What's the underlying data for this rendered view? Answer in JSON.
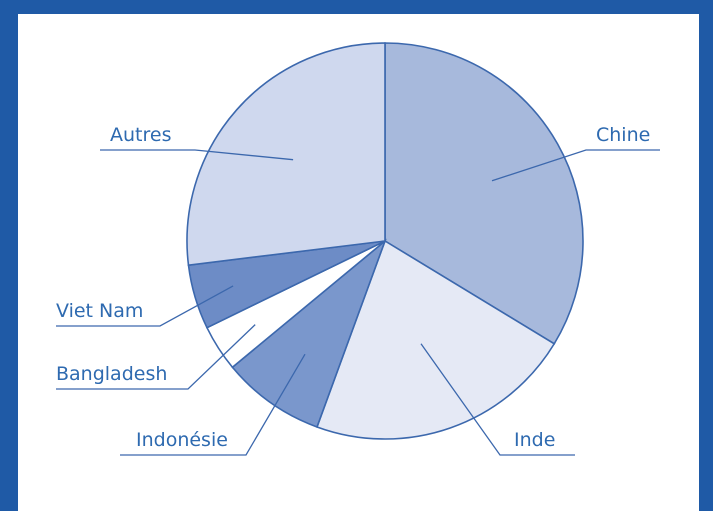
{
  "chart_data": {
    "type": "pie",
    "title": "",
    "slices": [
      {
        "label": "Chine",
        "value": 32.0,
        "color": "#a7b9dc"
      },
      {
        "label": "Inde",
        "value": 20.8,
        "color": "#e5e9f5"
      },
      {
        "label": "Indonésie",
        "value": 8.0,
        "color": "#7a97cc"
      },
      {
        "label": "Bangladesh",
        "value": 3.6,
        "color": "#ffffff"
      },
      {
        "label": "Viet Nam",
        "value": 5.0,
        "color": "#6d8cc6"
      },
      {
        "label": "Autres",
        "value": 25.6,
        "color": "#cfd8ee"
      }
    ],
    "start_angle_deg": 0,
    "direction": "clockwise",
    "outline_color": "#3c68ad",
    "label_color": "#2e6ab0"
  }
}
